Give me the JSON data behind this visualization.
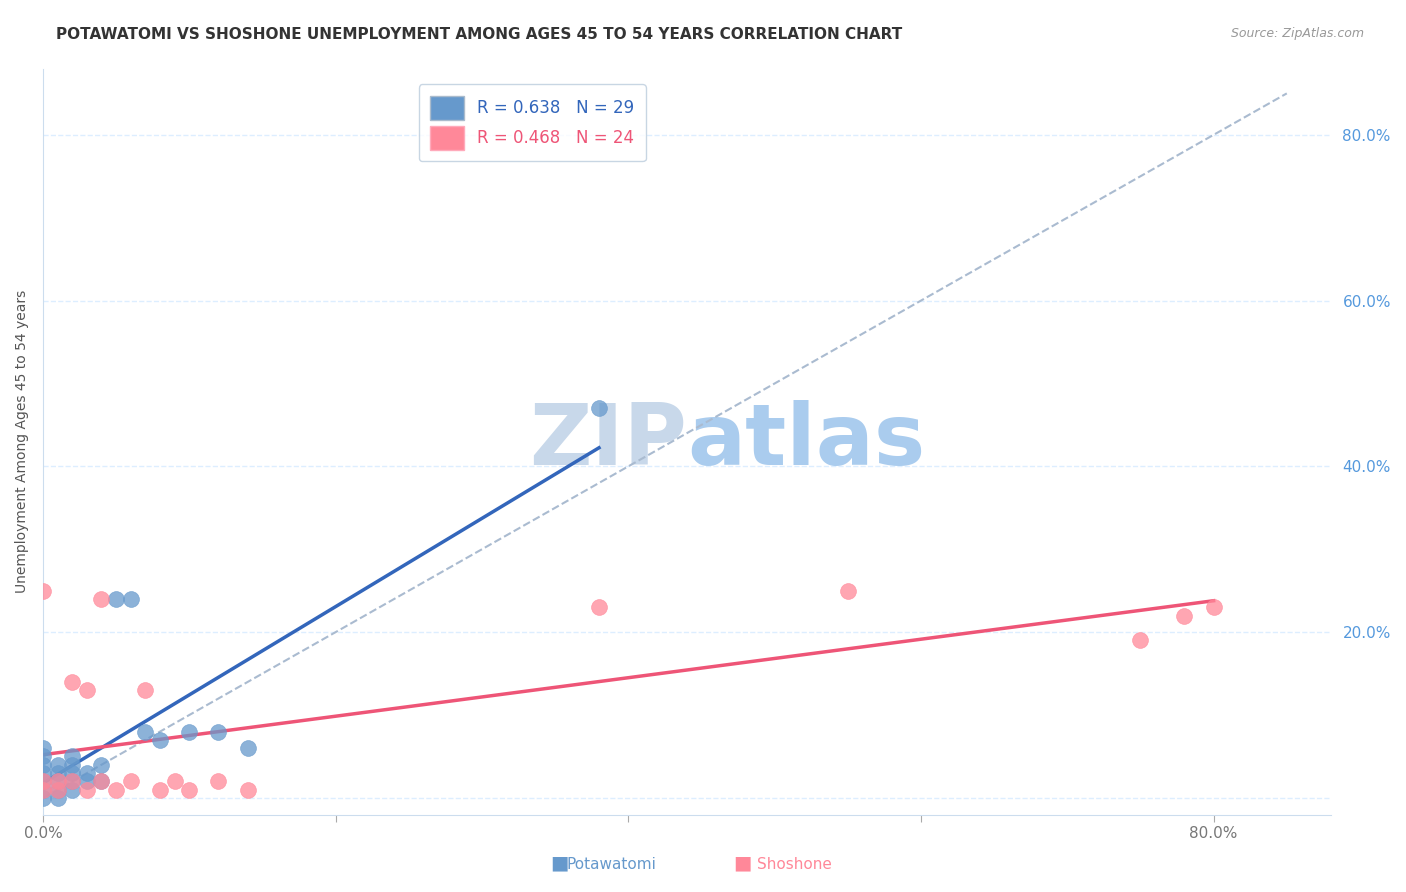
{
  "title": "POTAWATOMI VS SHOSHONE UNEMPLOYMENT AMONG AGES 45 TO 54 YEARS CORRELATION CHART",
  "source_text": "Source: ZipAtlas.com",
  "ylabel": "Unemployment Among Ages 45 to 54 years",
  "xlim": [
    0.0,
    0.88
  ],
  "ylim": [
    -0.02,
    0.88
  ],
  "potawatomi_R": 0.638,
  "potawatomi_N": 29,
  "shoshone_R": 0.468,
  "shoshone_N": 24,
  "potawatomi_color": "#6699CC",
  "shoshone_color": "#FF8899",
  "regression_line_color_blue": "#3366BB",
  "regression_line_color_pink": "#EE5577",
  "dashed_line_color": "#AABBD0",
  "grid_color": "#DDEEFF",
  "background_color": "#FFFFFF",
  "watermark_color": "#C8D8EA",
  "potawatomi_x": [
    0.0,
    0.0,
    0.0,
    0.0,
    0.0,
    0.0,
    0.0,
    0.01,
    0.01,
    0.01,
    0.01,
    0.01,
    0.02,
    0.02,
    0.02,
    0.02,
    0.02,
    0.03,
    0.03,
    0.04,
    0.04,
    0.05,
    0.06,
    0.07,
    0.08,
    0.1,
    0.12,
    0.14,
    0.38
  ],
  "potawatomi_y": [
    0.0,
    0.01,
    0.02,
    0.03,
    0.04,
    0.05,
    0.06,
    0.0,
    0.01,
    0.02,
    0.03,
    0.04,
    0.01,
    0.02,
    0.03,
    0.04,
    0.05,
    0.02,
    0.03,
    0.02,
    0.04,
    0.24,
    0.24,
    0.08,
    0.07,
    0.08,
    0.08,
    0.06,
    0.47
  ],
  "shoshone_x": [
    0.0,
    0.0,
    0.0,
    0.01,
    0.01,
    0.02,
    0.02,
    0.03,
    0.03,
    0.04,
    0.04,
    0.05,
    0.06,
    0.07,
    0.08,
    0.09,
    0.1,
    0.12,
    0.14,
    0.38,
    0.55,
    0.75,
    0.78,
    0.8
  ],
  "shoshone_y": [
    0.01,
    0.02,
    0.25,
    0.01,
    0.02,
    0.02,
    0.14,
    0.01,
    0.13,
    0.02,
    0.24,
    0.01,
    0.02,
    0.13,
    0.01,
    0.02,
    0.01,
    0.02,
    0.01,
    0.23,
    0.25,
    0.19,
    0.22,
    0.23
  ],
  "title_fontsize": 11,
  "axis_label_fontsize": 10,
  "tick_fontsize": 11,
  "legend_fontsize": 12
}
